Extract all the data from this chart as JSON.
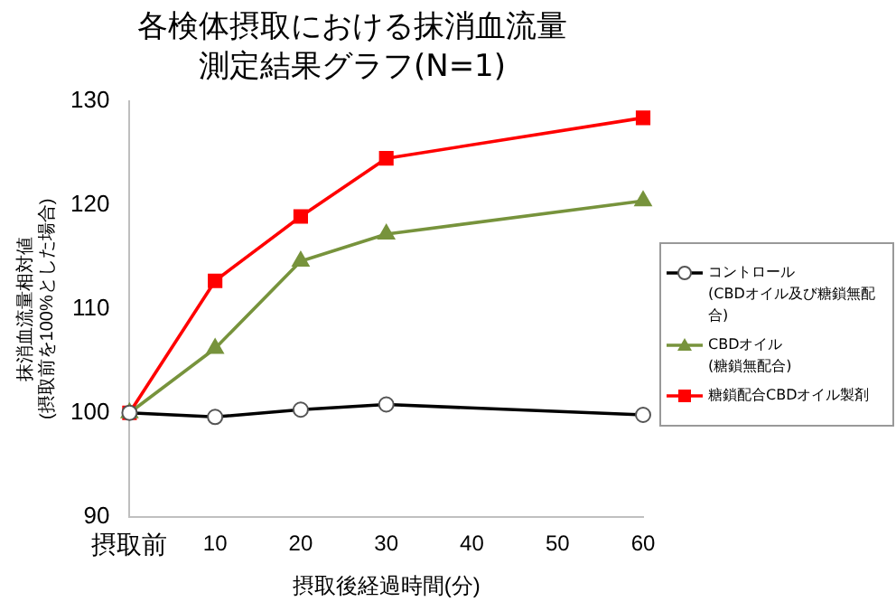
{
  "chart_data": {
    "type": "line",
    "title": "各検体摂取における抹消血流量測定結果グラフ(N=1)",
    "xlabel": "摂取後経過時間(分)",
    "ylabel": "抹消血流量相対値\n(摂取前を100%とした場合)",
    "x": [
      0,
      10,
      20,
      30,
      60
    ],
    "xlim": [
      0,
      60
    ],
    "xticks": [
      {
        "value": 0,
        "label": "摂取前"
      },
      10,
      20,
      30,
      40,
      50,
      60
    ],
    "ylim": [
      90,
      130
    ],
    "yticks": [
      90,
      100,
      110,
      120,
      130
    ],
    "grid": false,
    "legend": "right",
    "series": [
      {
        "name": "コントロール\n(CBDオイル及び糖鎖無配合)",
        "color": "#000000",
        "marker": "circle",
        "values": [
          100,
          99.6,
          100.3,
          100.8,
          99.8
        ]
      },
      {
        "name": "CBDオイル\n(糖鎖無配合)",
        "color": "#77933c",
        "marker": "triangle",
        "values": [
          100,
          106.2,
          114.6,
          117.2,
          120.4
        ]
      },
      {
        "name": "糖鎖配合CBDオイル製剤",
        "color": "#ff0000",
        "marker": "square",
        "values": [
          100,
          112.7,
          118.9,
          124.5,
          128.4
        ]
      }
    ]
  }
}
